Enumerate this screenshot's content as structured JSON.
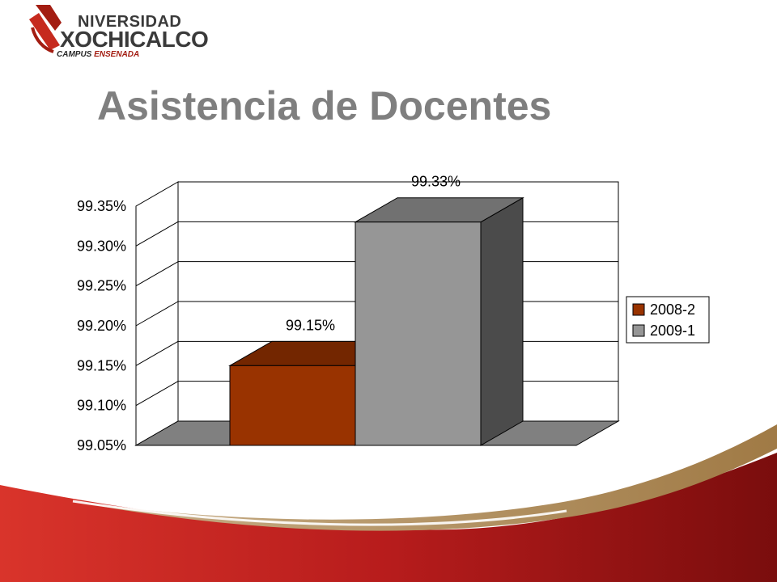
{
  "slide": {
    "title": "Asistencia de Docentes",
    "logo": {
      "line1": "NIVERSIDAD",
      "line2": "XOCHICALCO",
      "line3_a": "CAMPUS",
      "line3_b": "ENSENADA"
    }
  },
  "colors": {
    "title": "#7f7f7f",
    "accent_red": "#a31d12",
    "series_2008": "#993300",
    "series_2009": "#969696"
  },
  "chart_data": {
    "type": "bar",
    "title": "",
    "xlabel": "",
    "ylabel": "",
    "categories": [
      ""
    ],
    "series": [
      {
        "name": "2008-2",
        "values": [
          99.15
        ],
        "label": "99.15%"
      },
      {
        "name": "2009-1",
        "values": [
          99.33
        ],
        "label": "99.33%"
      }
    ],
    "ylim": [
      99.05,
      99.35
    ],
    "yticks": [
      "99.05%",
      "99.10%",
      "99.15%",
      "99.20%",
      "99.25%",
      "99.30%",
      "99.35%"
    ],
    "grid": true,
    "three_d": true,
    "legend": "right"
  }
}
